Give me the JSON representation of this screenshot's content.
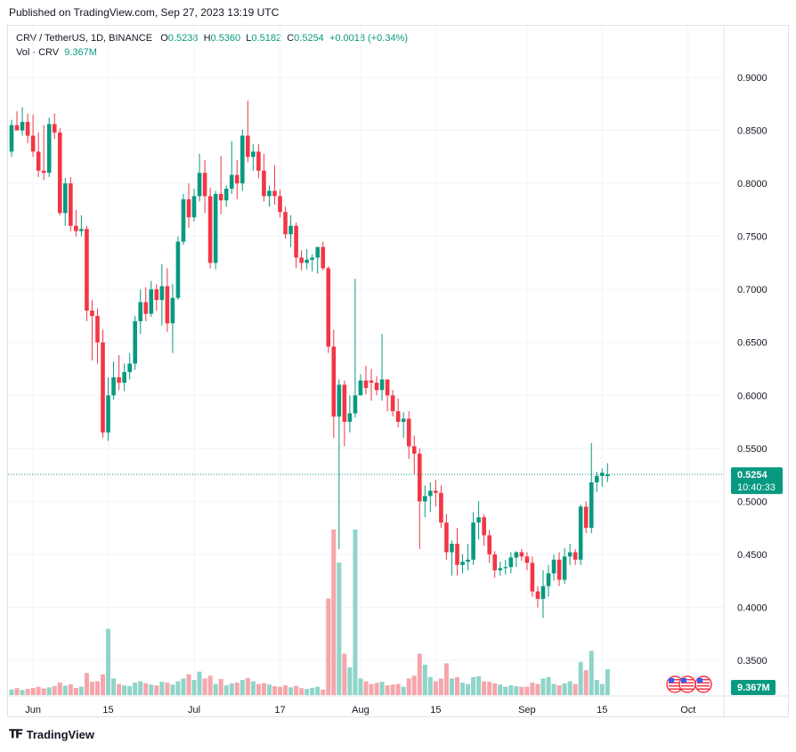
{
  "header": {
    "published": "Published on TradingView.com, Sep 27, 2023 13:19 UTC"
  },
  "legend": {
    "symbol": "CRV / TetherUS, 1D, BINANCE",
    "open_label": "O",
    "open": "0.5238",
    "high_label": "H",
    "high": "0.5360",
    "low_label": "L",
    "low": "0.5182",
    "close_label": "C",
    "close": "0.5254",
    "change": "+0.0018 (+0.34%)",
    "vol_label": "Vol · CRV",
    "vol_value": "9.367M"
  },
  "price_tag": {
    "price": "0.5254",
    "countdown": "10:40:33"
  },
  "volume_tag": "9.367M",
  "footer": {
    "brand": "TradingView",
    "logo_icon": "tradingview-logo-icon"
  },
  "colors": {
    "up": "#089981",
    "down": "#f23645",
    "vol_up": "#8fd4c9",
    "vol_down": "#f5a6ab",
    "grid": "#f0f3fa"
  },
  "chart_data": {
    "type": "candlestick",
    "y_ticks": [
      "0.9000",
      "0.8500",
      "0.8000",
      "0.7500",
      "0.7000",
      "0.6500",
      "0.6000",
      "0.5500",
      "0.5000",
      "0.4500",
      "0.4000",
      "0.3500"
    ],
    "ylim": [
      0.33,
      0.915
    ],
    "x_ticks": [
      {
        "label": "Jun",
        "index": 4
      },
      {
        "label": "15",
        "index": 18
      },
      {
        "label": "Jul",
        "index": 34
      },
      {
        "label": "17",
        "index": 50
      },
      {
        "label": "Aug",
        "index": 65
      },
      {
        "label": "15",
        "index": 79
      },
      {
        "label": "Sep",
        "index": 96
      },
      {
        "label": "15",
        "index": 110
      },
      {
        "label": "Oct",
        "index": 126
      }
    ],
    "candles": [
      [
        0.83,
        0.86,
        0.825,
        0.855,
        2.0
      ],
      [
        0.855,
        0.868,
        0.85,
        0.85,
        2.5
      ],
      [
        0.85,
        0.872,
        0.845,
        0.858,
        1.8
      ],
      [
        0.858,
        0.866,
        0.838,
        0.845,
        2.2
      ],
      [
        0.845,
        0.865,
        0.825,
        0.83,
        2.6
      ],
      [
        0.83,
        0.848,
        0.806,
        0.812,
        3.0
      ],
      [
        0.812,
        0.855,
        0.803,
        0.81,
        2.4
      ],
      [
        0.81,
        0.862,
        0.806,
        0.856,
        2.8
      ],
      [
        0.856,
        0.866,
        0.842,
        0.848,
        3.2
      ],
      [
        0.848,
        0.852,
        0.77,
        0.772,
        4.5
      ],
      [
        0.772,
        0.805,
        0.76,
        0.8,
        3.4
      ],
      [
        0.8,
        0.806,
        0.755,
        0.76,
        3.9
      ],
      [
        0.76,
        0.775,
        0.75,
        0.755,
        2.6
      ],
      [
        0.755,
        0.77,
        0.75,
        0.757,
        3.0
      ],
      [
        0.757,
        0.76,
        0.67,
        0.68,
        8.0
      ],
      [
        0.68,
        0.69,
        0.633,
        0.675,
        4.8
      ],
      [
        0.675,
        0.682,
        0.63,
        0.65,
        5.0
      ],
      [
        0.65,
        0.662,
        0.56,
        0.565,
        7.5
      ],
      [
        0.565,
        0.617,
        0.557,
        0.6,
        24.0
      ],
      [
        0.6,
        0.632,
        0.596,
        0.617,
        6.0
      ],
      [
        0.617,
        0.638,
        0.605,
        0.612,
        4.0
      ],
      [
        0.612,
        0.63,
        0.604,
        0.622,
        3.5
      ],
      [
        0.622,
        0.64,
        0.615,
        0.63,
        3.2
      ],
      [
        0.63,
        0.675,
        0.624,
        0.67,
        4.5
      ],
      [
        0.67,
        0.7,
        0.658,
        0.688,
        5.0
      ],
      [
        0.688,
        0.702,
        0.67,
        0.677,
        4.3
      ],
      [
        0.677,
        0.708,
        0.674,
        0.7,
        3.8
      ],
      [
        0.7,
        0.705,
        0.68,
        0.69,
        3.5
      ],
      [
        0.69,
        0.724,
        0.666,
        0.703,
        4.8
      ],
      [
        0.703,
        0.72,
        0.66,
        0.668,
        4.5
      ],
      [
        0.668,
        0.705,
        0.64,
        0.692,
        3.8
      ],
      [
        0.692,
        0.75,
        0.69,
        0.745,
        5.0
      ],
      [
        0.745,
        0.79,
        0.742,
        0.785,
        6.0
      ],
      [
        0.785,
        0.8,
        0.758,
        0.768,
        7.5
      ],
      [
        0.768,
        0.795,
        0.764,
        0.788,
        5.5
      ],
      [
        0.788,
        0.828,
        0.783,
        0.81,
        8.5
      ],
      [
        0.81,
        0.822,
        0.772,
        0.788,
        6.0
      ],
      [
        0.788,
        0.796,
        0.72,
        0.725,
        7.0
      ],
      [
        0.725,
        0.793,
        0.719,
        0.79,
        4.0
      ],
      [
        0.79,
        0.826,
        0.771,
        0.784,
        5.8
      ],
      [
        0.784,
        0.798,
        0.778,
        0.795,
        3.5
      ],
      [
        0.795,
        0.84,
        0.79,
        0.808,
        4.2
      ],
      [
        0.808,
        0.822,
        0.785,
        0.8,
        4.5
      ],
      [
        0.8,
        0.851,
        0.793,
        0.845,
        5.5
      ],
      [
        0.845,
        0.878,
        0.82,
        0.825,
        6.2
      ],
      [
        0.825,
        0.837,
        0.812,
        0.83,
        5.0
      ],
      [
        0.83,
        0.837,
        0.805,
        0.812,
        4.0
      ],
      [
        0.812,
        0.828,
        0.783,
        0.788,
        4.3
      ],
      [
        0.788,
        0.798,
        0.778,
        0.793,
        3.8
      ],
      [
        0.793,
        0.817,
        0.78,
        0.788,
        3.2
      ],
      [
        0.788,
        0.794,
        0.768,
        0.773,
        3.0
      ],
      [
        0.773,
        0.778,
        0.748,
        0.752,
        3.5
      ],
      [
        0.752,
        0.77,
        0.74,
        0.76,
        2.8
      ],
      [
        0.76,
        0.763,
        0.72,
        0.73,
        3.3
      ],
      [
        0.73,
        0.737,
        0.718,
        0.725,
        2.5
      ],
      [
        0.725,
        0.738,
        0.719,
        0.728,
        2.2
      ],
      [
        0.728,
        0.733,
        0.717,
        0.73,
        2.6
      ],
      [
        0.73,
        0.738,
        0.715,
        0.74,
        3.0
      ],
      [
        0.74,
        0.745,
        0.718,
        0.72,
        2.0
      ],
      [
        0.72,
        0.722,
        0.64,
        0.646,
        35.0
      ],
      [
        0.646,
        0.662,
        0.56,
        0.58,
        60.0
      ],
      [
        0.58,
        0.615,
        0.455,
        0.61,
        48.0
      ],
      [
        0.61,
        0.614,
        0.552,
        0.575,
        15.0
      ],
      [
        0.575,
        0.6,
        0.565,
        0.583,
        10.0
      ],
      [
        0.583,
        0.71,
        0.579,
        0.6,
        60.0
      ],
      [
        0.6,
        0.62,
        0.6,
        0.614,
        6.0
      ],
      [
        0.614,
        0.628,
        0.601,
        0.607,
        5.0
      ],
      [
        0.614,
        0.625,
        0.595,
        0.612,
        4.0
      ],
      [
        0.612,
        0.618,
        0.6,
        0.605,
        4.4
      ],
      [
        0.605,
        0.658,
        0.595,
        0.615,
        4.8
      ],
      [
        0.615,
        0.615,
        0.585,
        0.6,
        3.5
      ],
      [
        0.6,
        0.605,
        0.58,
        0.585,
        3.8
      ],
      [
        0.585,
        0.597,
        0.57,
        0.575,
        4.0
      ],
      [
        0.575,
        0.584,
        0.56,
        0.578,
        3.0
      ],
      [
        0.578,
        0.585,
        0.54,
        0.552,
        6.0
      ],
      [
        0.552,
        0.562,
        0.525,
        0.545,
        7.0
      ],
      [
        0.545,
        0.55,
        0.455,
        0.5,
        15.0
      ],
      [
        0.5,
        0.515,
        0.485,
        0.505,
        11.0
      ],
      [
        0.505,
        0.518,
        0.49,
        0.51,
        6.5
      ],
      [
        0.51,
        0.52,
        0.495,
        0.508,
        5.0
      ],
      [
        0.508,
        0.515,
        0.475,
        0.48,
        6.0
      ],
      [
        0.48,
        0.488,
        0.445,
        0.452,
        11.5
      ],
      [
        0.452,
        0.463,
        0.43,
        0.46,
        6.0
      ],
      [
        0.46,
        0.475,
        0.43,
        0.44,
        6.5
      ],
      [
        0.44,
        0.45,
        0.432,
        0.443,
        4.5
      ],
      [
        0.443,
        0.46,
        0.435,
        0.445,
        4.0
      ],
      [
        0.445,
        0.49,
        0.44,
        0.48,
        6.5
      ],
      [
        0.48,
        0.5,
        0.464,
        0.485,
        6.8
      ],
      [
        0.485,
        0.488,
        0.458,
        0.468,
        5.0
      ],
      [
        0.468,
        0.473,
        0.442,
        0.45,
        4.8
      ],
      [
        0.45,
        0.453,
        0.428,
        0.435,
        4.2
      ],
      [
        0.435,
        0.443,
        0.43,
        0.437,
        3.8
      ],
      [
        0.437,
        0.445,
        0.431,
        0.438,
        3.0
      ],
      [
        0.438,
        0.452,
        0.432,
        0.447,
        3.5
      ],
      [
        0.447,
        0.453,
        0.438,
        0.452,
        3.2
      ],
      [
        0.452,
        0.455,
        0.444,
        0.448,
        3.0
      ],
      [
        0.448,
        0.452,
        0.435,
        0.442,
        3.0
      ],
      [
        0.442,
        0.448,
        0.41,
        0.415,
        4.5
      ],
      [
        0.415,
        0.42,
        0.4,
        0.408,
        4.0
      ],
      [
        0.408,
        0.435,
        0.39,
        0.42,
        6.0
      ],
      [
        0.42,
        0.44,
        0.41,
        0.432,
        6.5
      ],
      [
        0.432,
        0.45,
        0.425,
        0.445,
        4.0
      ],
      [
        0.445,
        0.452,
        0.42,
        0.426,
        3.5
      ],
      [
        0.426,
        0.456,
        0.422,
        0.448,
        4.2
      ],
      [
        0.448,
        0.46,
        0.44,
        0.452,
        5.0
      ],
      [
        0.452,
        0.455,
        0.44,
        0.445,
        4.0
      ],
      [
        0.445,
        0.497,
        0.44,
        0.495,
        12.0
      ],
      [
        0.495,
        0.5,
        0.47,
        0.475,
        9.0
      ],
      [
        0.475,
        0.555,
        0.47,
        0.518,
        16.0
      ],
      [
        0.518,
        0.528,
        0.509,
        0.524,
        5.5
      ],
      [
        0.524,
        0.531,
        0.514,
        0.527,
        4.0
      ],
      [
        0.5238,
        0.536,
        0.5182,
        0.5254,
        9.367
      ]
    ],
    "last_price": 0.5254
  }
}
